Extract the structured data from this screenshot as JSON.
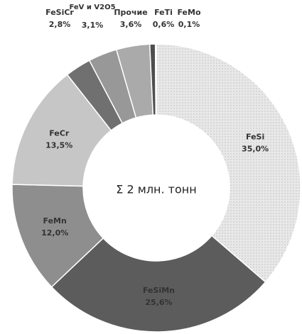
{
  "chart_data": {
    "type": "donut",
    "center_label": "Σ 2 млн. тонн",
    "categories": [
      "FeSi",
      "FeSiMn",
      "FeMn",
      "FeCr",
      "FeSiCr",
      "FeV и V2O5",
      "Прочие",
      "FeTi",
      "FeMo"
    ],
    "values": [
      35.0,
      25.6,
      12.0,
      13.5,
      2.8,
      3.1,
      3.6,
      0.6,
      0.1
    ],
    "value_labels": [
      "35,0%",
      "25,6%",
      "12,0%",
      "13,5%",
      "2,8%",
      "3,1%",
      "3,6%",
      "0,6%",
      "0,1%"
    ],
    "colors": [
      "#e4e4e4",
      "#5c5c5c",
      "#8e8e8e",
      "#c6c6c6",
      "#707070",
      "#989898",
      "#aaaaaa",
      "#4e4e4e",
      "#dadada"
    ]
  }
}
